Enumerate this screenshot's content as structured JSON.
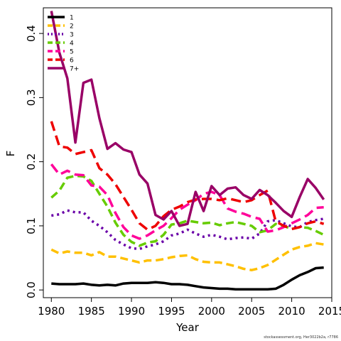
{
  "credit": "stockassessment.org, Her3022b2a, r7786",
  "chart_data": {
    "type": "line",
    "xlabel": "Year",
    "ylabel": "F",
    "xlim": [
      1979,
      2015
    ],
    "ylim": [
      -0.012,
      0.44
    ],
    "x_ticks": [
      1980,
      1985,
      1990,
      1995,
      2000,
      2005,
      2010,
      2015
    ],
    "y_ticks": [
      0.0,
      0.1,
      0.2,
      0.3,
      0.4
    ],
    "y_tick_labels": [
      "0.0",
      "0.1",
      "0.2",
      "0.3",
      "0.4"
    ],
    "legend_position": "top-left",
    "x": [
      1980,
      1981,
      1982,
      1983,
      1984,
      1985,
      1986,
      1987,
      1988,
      1989,
      1990,
      1991,
      1992,
      1993,
      1994,
      1995,
      1996,
      1997,
      1998,
      1999,
      2000,
      2001,
      2002,
      2003,
      2004,
      2005,
      2006,
      2007,
      2008,
      2009,
      2010,
      2011,
      2012,
      2013,
      2014
    ],
    "series": [
      {
        "name": "1",
        "color": "#000000",
        "dash": "solid",
        "values": [
          0.01,
          0.009,
          0.009,
          0.009,
          0.01,
          0.008,
          0.007,
          0.008,
          0.007,
          0.01,
          0.011,
          0.011,
          0.011,
          0.012,
          0.011,
          0.009,
          0.009,
          0.008,
          0.006,
          0.004,
          0.003,
          0.002,
          0.002,
          0.001,
          0.001,
          0.001,
          0.001,
          0.001,
          0.002,
          0.008,
          0.016,
          0.023,
          0.028,
          0.034,
          0.035
        ]
      },
      {
        "name": "2",
        "color": "#ffc000",
        "dash": "dash",
        "values": [
          0.063,
          0.057,
          0.06,
          0.058,
          0.058,
          0.054,
          0.059,
          0.052,
          0.052,
          0.049,
          0.046,
          0.043,
          0.046,
          0.046,
          0.048,
          0.051,
          0.053,
          0.054,
          0.048,
          0.044,
          0.043,
          0.043,
          0.04,
          0.037,
          0.033,
          0.031,
          0.034,
          0.039,
          0.047,
          0.055,
          0.063,
          0.067,
          0.069,
          0.073,
          0.071
        ]
      },
      {
        "name": "3",
        "color": "#6a00a8",
        "dash": "dot",
        "values": [
          0.116,
          0.118,
          0.124,
          0.121,
          0.121,
          0.108,
          0.1,
          0.09,
          0.078,
          0.071,
          0.065,
          0.064,
          0.068,
          0.071,
          0.076,
          0.085,
          0.088,
          0.094,
          0.088,
          0.083,
          0.086,
          0.083,
          0.079,
          0.081,
          0.082,
          0.08,
          0.088,
          0.107,
          0.109,
          0.104,
          0.099,
          0.098,
          0.106,
          0.109,
          0.111
        ]
      },
      {
        "name": "4",
        "color": "#66cc00",
        "dash": "dash",
        "values": [
          0.144,
          0.155,
          0.175,
          0.178,
          0.177,
          0.17,
          0.15,
          0.13,
          0.105,
          0.086,
          0.075,
          0.069,
          0.074,
          0.076,
          0.086,
          0.102,
          0.104,
          0.108,
          0.106,
          0.104,
          0.105,
          0.101,
          0.104,
          0.106,
          0.103,
          0.1,
          0.09,
          0.093,
          0.103,
          0.1,
          0.095,
          0.098,
          0.097,
          0.092,
          0.086
        ]
      },
      {
        "name": "5",
        "color": "#ff0099",
        "dash": "longdash",
        "values": [
          0.196,
          0.18,
          0.186,
          0.18,
          0.179,
          0.163,
          0.161,
          0.148,
          0.12,
          0.098,
          0.085,
          0.08,
          0.085,
          0.093,
          0.1,
          0.112,
          0.125,
          0.133,
          0.14,
          0.15,
          0.153,
          0.148,
          0.127,
          0.122,
          0.119,
          0.114,
          0.111,
          0.091,
          0.093,
          0.098,
          0.104,
          0.11,
          0.117,
          0.128,
          0.129
        ]
      },
      {
        "name": "6",
        "color": "#ee0000",
        "dash": "longdash",
        "values": [
          0.263,
          0.224,
          0.222,
          0.212,
          0.215,
          0.218,
          0.19,
          0.18,
          0.165,
          0.145,
          0.125,
          0.104,
          0.094,
          0.1,
          0.115,
          0.125,
          0.13,
          0.137,
          0.141,
          0.142,
          0.142,
          0.14,
          0.143,
          0.14,
          0.137,
          0.14,
          0.148,
          0.155,
          0.107,
          0.1,
          0.095,
          0.098,
          0.104,
          0.107,
          0.103
        ]
      },
      {
        "name": "7+",
        "color": "#990066",
        "dash": "solid",
        "values": [
          0.435,
          0.37,
          0.33,
          0.23,
          0.323,
          0.328,
          0.268,
          0.22,
          0.229,
          0.219,
          0.215,
          0.18,
          0.166,
          0.117,
          0.11,
          0.123,
          0.1,
          0.103,
          0.153,
          0.123,
          0.162,
          0.148,
          0.158,
          0.16,
          0.148,
          0.142,
          0.156,
          0.148,
          0.136,
          0.123,
          0.114,
          0.145,
          0.173,
          0.159,
          0.141
        ]
      }
    ]
  }
}
